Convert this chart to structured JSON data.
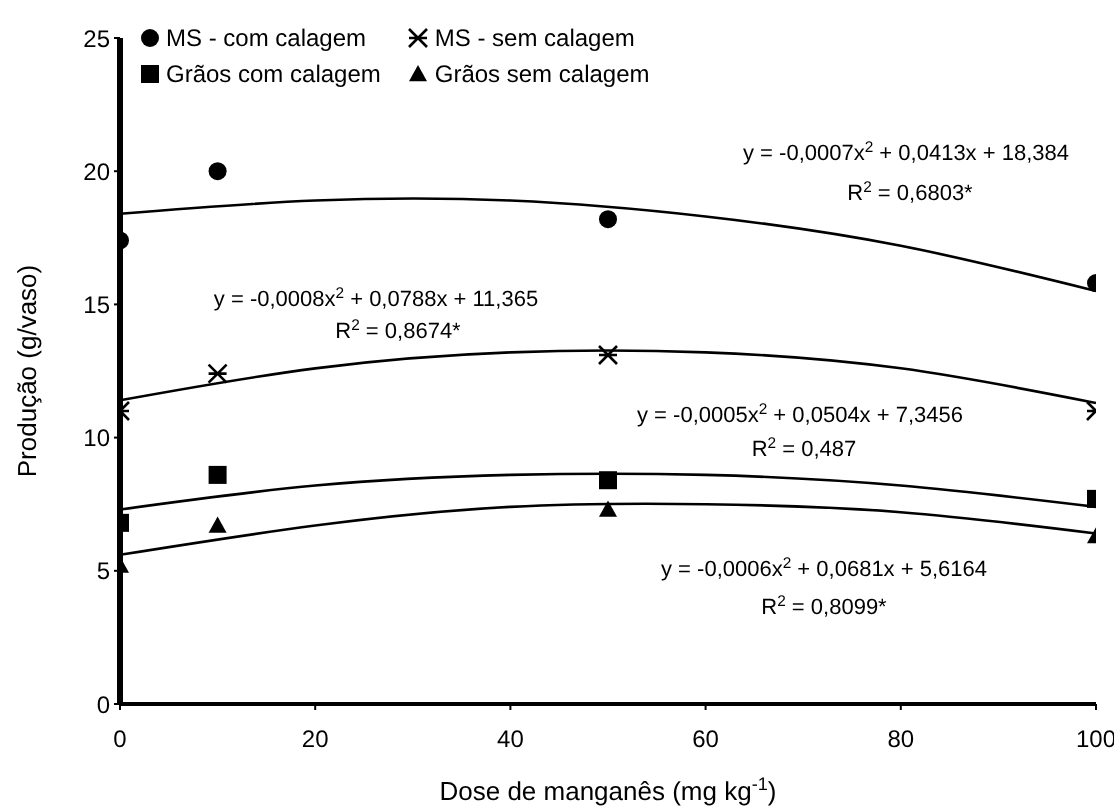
{
  "chart_data": {
    "type": "scatter",
    "xlabel": "Dose de manganês (mg kg$^{-1}$)",
    "ylabel": "Produção (g/vaso)",
    "x": [
      0,
      10,
      50,
      100
    ],
    "xlim": [
      0,
      100
    ],
    "xticks": [
      0,
      20,
      40,
      60,
      80,
      100
    ],
    "ylim": [
      0,
      25
    ],
    "yticks": [
      0,
      5,
      10,
      15,
      20,
      25
    ],
    "grid": false,
    "legend": "top left",
    "series": [
      {
        "name": "MS - com calagem",
        "color": "#000000",
        "marker": "circle",
        "values": [
          17.4,
          20.0,
          18.2,
          15.8
        ]
      },
      {
        "name": "MS - sem calagem",
        "color": "#000000",
        "marker": "cross",
        "values": [
          11.0,
          12.4,
          13.1,
          11.0
        ]
      },
      {
        "name": "Grãos com calagem",
        "color": "#000000",
        "marker": "square",
        "values": [
          6.8,
          8.6,
          8.4,
          7.7
        ]
      },
      {
        "name": "Grãos sem calagem",
        "color": "#000000",
        "marker": "triangle",
        "values": [
          5.2,
          6.7,
          7.3,
          6.3
        ]
      },
      {
        "type": "line",
        "color": "#000000",
        "marker": "none",
        "x": [
          0,
          20,
          40,
          60,
          80,
          100
        ],
        "values": [
          18.4,
          18.9,
          18.9,
          18.3,
          17.2,
          15.5
        ]
      },
      {
        "type": "line",
        "color": "#000000",
        "marker": "none",
        "x": [
          0,
          20,
          40,
          60,
          80,
          100
        ],
        "values": [
          11.4,
          12.6,
          13.2,
          13.2,
          12.6,
          11.3
        ]
      },
      {
        "type": "line",
        "color": "#000000",
        "marker": "none",
        "x": [
          0,
          20,
          40,
          60,
          80,
          100
        ],
        "values": [
          7.3,
          8.2,
          8.6,
          8.6,
          8.2,
          7.4
        ]
      },
      {
        "type": "line",
        "color": "#000000",
        "marker": "none",
        "x": [
          0,
          20,
          40,
          60,
          80,
          100
        ],
        "values": [
          5.6,
          6.7,
          7.4,
          7.5,
          7.2,
          6.4
        ]
      }
    ],
    "annotations": [
      "y = -0,0007x$^{2}$ + 0,0413x + 18,384",
      "R$^{2}$ = 0,6803*",
      "y = -0,0008x$^{2}$ + 0,0788x + 11,365",
      "R$^{2}$ = 0,8674*",
      "y = -0,0005x$^{2}$ + 0,0504x + 7,3456",
      "R$^{2}$ = 0,487",
      "y = -0,0006x$^{2}$ + 0,0681x + 5,6164",
      "R$^{2}$ = 0,8099*"
    ]
  }
}
